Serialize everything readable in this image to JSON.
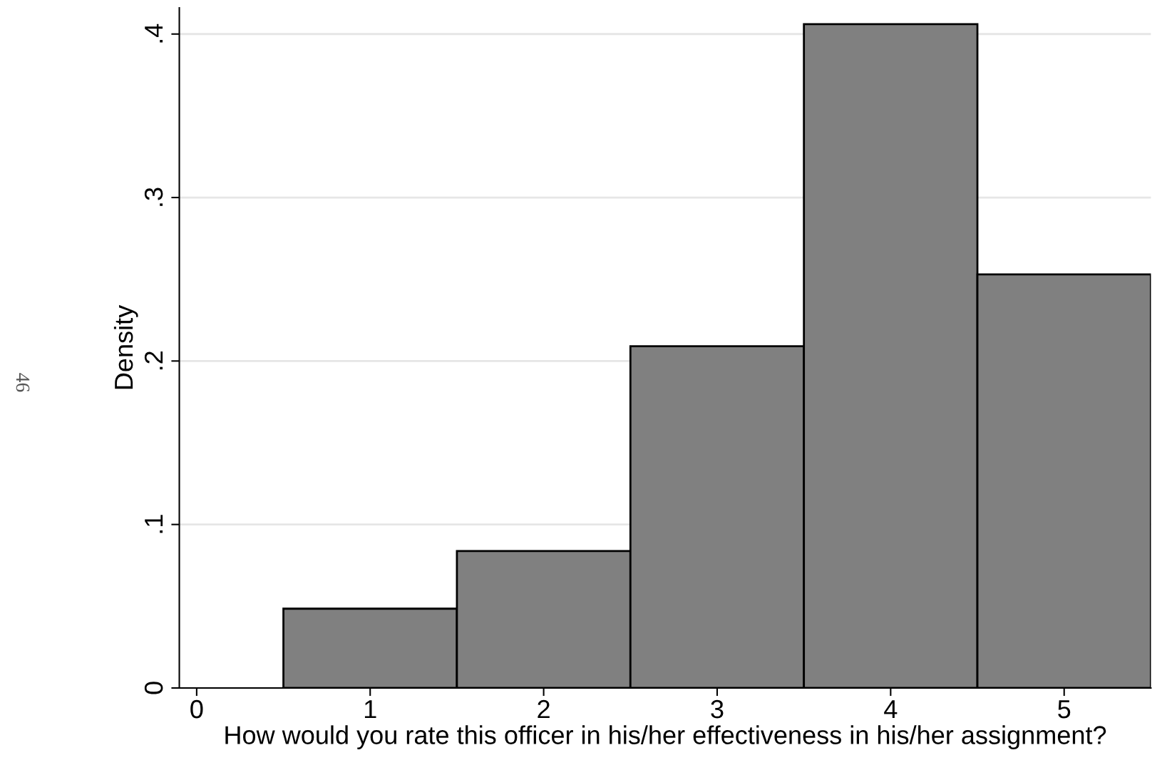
{
  "chart_data": {
    "type": "histogram",
    "xlabel": "How would you rate this officer in his/her effectiveness in his/her assignment?",
    "ylabel": "Density",
    "bins": [
      0.5,
      1.5,
      2.5,
      3.5,
      4.5,
      5.5
    ],
    "values": [
      0.0485,
      0.0838,
      0.209,
      0.406,
      0.253
    ],
    "color": "#808080",
    "xlim": [
      -0.1,
      5.5
    ],
    "xticks": [
      0,
      1,
      2,
      3,
      4,
      5
    ],
    "ylim": [
      0,
      0.416
    ],
    "yticks": [
      {
        "value": 0,
        "label": "0"
      },
      {
        "value": 0.1,
        "label": ".1"
      },
      {
        "value": 0.2,
        "label": ".2"
      },
      {
        "value": 0.3,
        "label": ".3"
      },
      {
        "value": 0.4,
        "label": ".4"
      }
    ],
    "grid": "y",
    "annotations": [
      "46"
    ]
  }
}
